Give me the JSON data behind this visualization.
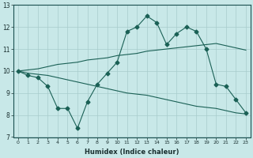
{
  "xlabel": "Humidex (Indice chaleur)",
  "bg_color": "#c8e8e8",
  "grid_color": "#a8cccc",
  "line_color": "#1a6055",
  "xlim": [
    0,
    23
  ],
  "ylim": [
    7,
    13
  ],
  "yticks": [
    7,
    8,
    9,
    10,
    11,
    12,
    13
  ],
  "xticks": [
    0,
    1,
    2,
    3,
    4,
    5,
    6,
    7,
    8,
    9,
    10,
    11,
    12,
    13,
    14,
    15,
    16,
    17,
    18,
    19,
    20,
    21,
    22,
    23
  ],
  "line_jagged": [
    10.0,
    9.8,
    9.7,
    9.3,
    8.3,
    8.3,
    7.4,
    8.6,
    9.4,
    9.9,
    10.4,
    11.8,
    12.0,
    12.5,
    12.2,
    11.2,
    11.7,
    12.0,
    11.8,
    11.0,
    9.4,
    9.3,
    8.7,
    8.1
  ],
  "line_upper": [
    10.0,
    10.05,
    10.1,
    10.2,
    10.3,
    10.35,
    10.4,
    10.5,
    10.55,
    10.6,
    10.7,
    10.75,
    10.8,
    10.9,
    10.95,
    11.0,
    11.05,
    11.1,
    11.15,
    11.2,
    11.25,
    11.15,
    11.05,
    10.95
  ],
  "line_lower": [
    10.0,
    9.9,
    9.85,
    9.8,
    9.7,
    9.6,
    9.5,
    9.4,
    9.3,
    9.2,
    9.1,
    9.0,
    8.95,
    8.9,
    8.8,
    8.7,
    8.6,
    8.5,
    8.4,
    8.35,
    8.3,
    8.2,
    8.1,
    8.05
  ]
}
